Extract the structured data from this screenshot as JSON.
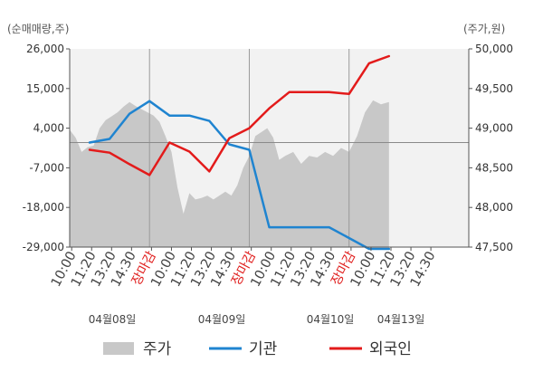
{
  "chart_data": {
    "type": "line",
    "left_axis_label": "(순매매량,주)",
    "right_axis_label": "(주가,원)",
    "left_ticks": [
      "26,000",
      "15,000",
      "4,000",
      "-7,000",
      "-18,000",
      "-29,000"
    ],
    "right_ticks": [
      "50,000",
      "49,500",
      "49,000",
      "48,500",
      "48,000",
      "47,500"
    ],
    "ylim_left": [
      -29000,
      26000
    ],
    "ylim_right": [
      47500,
      50000
    ],
    "x_tick_labels": [
      {
        "text": "10:00",
        "red": false
      },
      {
        "text": "11:20",
        "red": false
      },
      {
        "text": "13:20",
        "red": false
      },
      {
        "text": "14:30",
        "red": false
      },
      {
        "text": "장마감",
        "red": true
      },
      {
        "text": "10:00",
        "red": false
      },
      {
        "text": "11:20",
        "red": false
      },
      {
        "text": "13:20",
        "red": false
      },
      {
        "text": "14:30",
        "red": false
      },
      {
        "text": "장마감",
        "red": true
      },
      {
        "text": "10:00",
        "red": false
      },
      {
        "text": "11:20",
        "red": false
      },
      {
        "text": "13:20",
        "red": false
      },
      {
        "text": "14:30",
        "red": false
      },
      {
        "text": "장마감",
        "red": true
      },
      {
        "text": "10:00",
        "red": false
      },
      {
        "text": "11:20",
        "red": false
      },
      {
        "text": "13:20",
        "red": false
      },
      {
        "text": "14:30",
        "red": false
      }
    ],
    "dates": [
      "04월08일",
      "04월09일",
      "04월10일",
      "04월13일"
    ],
    "legend": [
      {
        "label": "주가",
        "color": "#c8c8c8",
        "kind": "area"
      },
      {
        "label": "기관",
        "color": "#1f84d0",
        "kind": "line"
      },
      {
        "label": "외국인",
        "color": "#e31b1b",
        "kind": "line"
      }
    ],
    "grid": "vertical day separators + zero line",
    "series": [
      {
        "name": "기관",
        "color": "#1f84d0",
        "axis": "left",
        "x": [
          1,
          2,
          3,
          4,
          5,
          6,
          7,
          8,
          9,
          10,
          11,
          12,
          13,
          14,
          15,
          16
        ],
        "values": [
          0,
          1000,
          8000,
          11500,
          7500,
          7500,
          6000,
          -500,
          -2000,
          -23500,
          -23500,
          -23500,
          -23500,
          -26500,
          -29500,
          -29500
        ]
      },
      {
        "name": "외국인",
        "color": "#e31b1b",
        "axis": "left",
        "x": [
          1,
          2,
          3,
          4,
          5,
          6,
          7,
          8,
          9,
          10,
          11,
          12,
          13,
          14,
          15,
          16
        ],
        "values": [
          -2000,
          -2800,
          -6000,
          -9000,
          0,
          -2500,
          -8000,
          1200,
          4000,
          9500,
          14000,
          14000,
          14000,
          13500,
          22000,
          24000
        ]
      },
      {
        "name": "주가",
        "color": "#c8c8c8",
        "axis": "right",
        "kind": "area",
        "x": [
          0,
          0.3,
          0.6,
          0.9,
          1.2,
          1.5,
          1.8,
          2.1,
          2.4,
          2.7,
          3.0,
          3.3,
          3.6,
          3.9,
          4.2,
          4.5,
          4.8,
          5.1,
          5.4,
          5.7,
          6.0,
          6.3,
          6.6,
          6.9,
          7.2,
          7.5,
          7.8,
          8.1,
          8.4,
          8.7,
          9.0,
          9.3,
          9.6,
          9.9,
          10.2,
          10.5,
          10.8,
          11.2,
          11.6,
          12.0,
          12.4,
          12.8,
          13.2,
          13.6,
          14.0,
          14.4,
          14.8,
          15.2,
          15.6,
          16.0
        ],
        "values": [
          48980,
          48880,
          48700,
          48760,
          48780,
          49000,
          49100,
          49150,
          49200,
          49270,
          49330,
          49280,
          49240,
          49200,
          49160,
          49080,
          48900,
          48700,
          48250,
          47920,
          48180,
          48100,
          48120,
          48150,
          48100,
          48150,
          48200,
          48150,
          48280,
          48500,
          48650,
          48900,
          48950,
          49000,
          48880,
          48600,
          48650,
          48700,
          48550,
          48650,
          48630,
          48700,
          48650,
          48750,
          48700,
          48900,
          49200,
          49350,
          49300,
          49330
        ]
      }
    ]
  }
}
